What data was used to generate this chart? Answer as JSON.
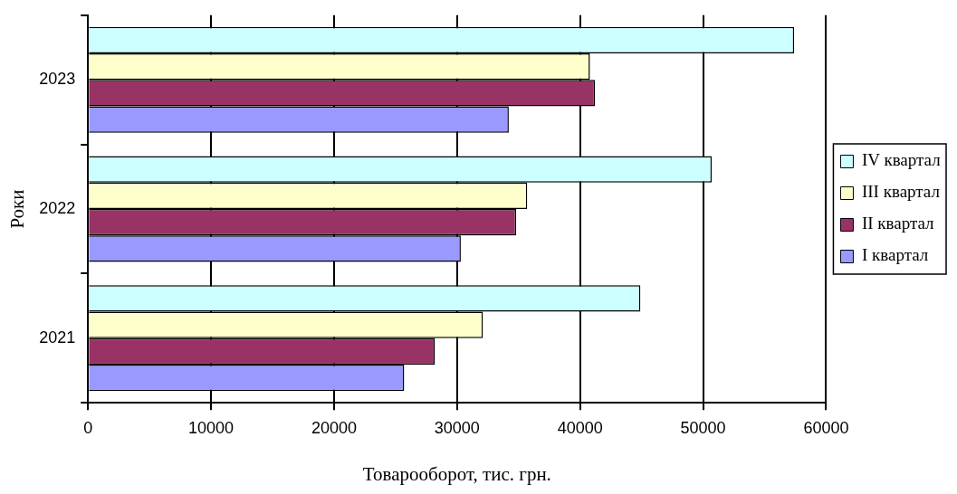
{
  "chart_data": {
    "type": "bar",
    "orientation": "horizontal",
    "xlabel": "Товарооборот, тис. грн.",
    "ylabel": "Роки",
    "categories": [
      "2023",
      "2022",
      "2021"
    ],
    "series": [
      {
        "name": "IV квартал",
        "color": "#ccffff",
        "values": [
          57400,
          50700,
          44900
        ]
      },
      {
        "name": "III квартал",
        "color": "#ffffcc",
        "values": [
          40800,
          35700,
          32100
        ]
      },
      {
        "name": "II квартал",
        "color": "#993366",
        "values": [
          41200,
          34800,
          28200
        ]
      },
      {
        "name": "I квартал",
        "color": "#9999ff",
        "values": [
          34200,
          30300,
          25700
        ]
      }
    ],
    "xlim": [
      0,
      60000
    ],
    "xticks": [
      0,
      10000,
      20000,
      30000,
      40000,
      50000,
      60000
    ],
    "grid": "x",
    "legend": "right"
  }
}
